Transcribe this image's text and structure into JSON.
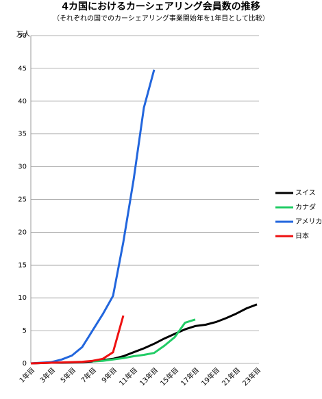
{
  "chart_data": {
    "type": "line",
    "title": "4カ国におけるカーシェアリング会員数の推移",
    "subtitle": "（それぞれの国でのカーシェアリング事業開始年を1年目として比較）",
    "y_label": "万人",
    "categories": [
      "1年目",
      null,
      "3年目",
      null,
      "5年目",
      null,
      "7年目",
      null,
      "9年目",
      null,
      "11年目",
      null,
      "13年目",
      null,
      "15年目",
      null,
      "17年目",
      null,
      "19年目",
      null,
      "21年目",
      null,
      "23年目"
    ],
    "series": [
      {
        "name": "スイス",
        "color": "#000000",
        "values": [
          0,
          0.05,
          0.1,
          0.1,
          0.15,
          0.2,
          0.3,
          0.5,
          0.7,
          1.1,
          1.7,
          2.3,
          3.0,
          3.8,
          4.5,
          5.2,
          5.7,
          5.9,
          6.3,
          6.9,
          7.6,
          8.4,
          9.0
        ]
      },
      {
        "name": "カナダ",
        "color": "#22cc66",
        "values": [
          null,
          null,
          null,
          null,
          null,
          null,
          0.3,
          0.4,
          0.6,
          0.8,
          1.1,
          1.3,
          1.6,
          2.7,
          4.0,
          6.2,
          6.7,
          null,
          null,
          null,
          null,
          null,
          null
        ]
      },
      {
        "name": "アメリカ",
        "color": "#2266dd",
        "values": [
          0,
          0.1,
          0.2,
          0.6,
          1.2,
          2.5,
          5.0,
          7.5,
          10.3,
          18.5,
          28,
          39,
          44.8,
          null,
          null,
          null,
          null,
          null,
          null,
          null,
          null,
          null,
          null
        ]
      },
      {
        "name": "日本",
        "color": "#ee1111",
        "values": [
          0,
          0.05,
          0.1,
          0.15,
          0.2,
          0.25,
          0.4,
          0.7,
          1.7,
          7.3,
          null,
          null,
          null,
          null,
          null,
          null,
          null,
          null,
          null,
          null,
          null,
          null,
          null
        ]
      }
    ],
    "ylim": [
      0,
      50
    ],
    "yticks": [
      0,
      5,
      10,
      15,
      20,
      25,
      30,
      35,
      40,
      45,
      50
    ],
    "grid": true
  }
}
